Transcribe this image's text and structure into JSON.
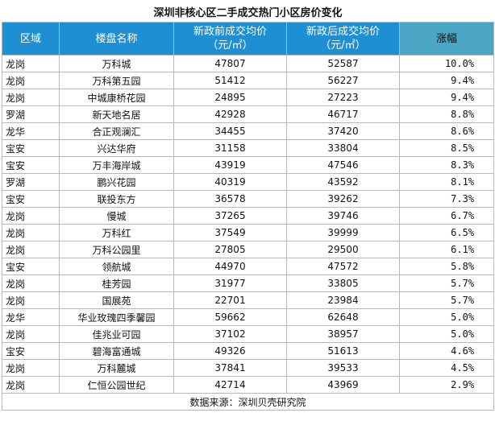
{
  "title": "深圳非核心区二手成交热门小区房价变化",
  "table": {
    "header": [
      [
        "区域"
      ],
      [
        "楼盘名称"
      ],
      [
        "新政前成交均价",
        "（元/㎡）"
      ],
      [
        "新政后成交均价",
        "（元/㎡）"
      ],
      [
        "涨幅"
      ]
    ],
    "rows": [
      [
        "龙岗",
        "万科城",
        "47807",
        "52587",
        "10.0%"
      ],
      [
        "龙岗",
        "万科第五园",
        "51412",
        "56227",
        "9.4%"
      ],
      [
        "龙岗",
        "中城康桥花园",
        "24895",
        "27223",
        "9.4%"
      ],
      [
        "罗湖",
        "新天地名居",
        "42928",
        "46717",
        "8.8%"
      ],
      [
        "龙华",
        "合正观澜汇",
        "34455",
        "37420",
        "8.6%"
      ],
      [
        "宝安",
        "兴达华府",
        "31158",
        "33804",
        "8.5%"
      ],
      [
        "宝安",
        "万丰海岸城",
        "43919",
        "47546",
        "8.3%"
      ],
      [
        "罗湖",
        "鹏兴花园",
        "40319",
        "43592",
        "8.1%"
      ],
      [
        "宝安",
        "联投东方",
        "36578",
        "39262",
        "7.3%"
      ],
      [
        "龙岗",
        "慢城",
        "37265",
        "39746",
        "6.7%"
      ],
      [
        "龙岗",
        "万科红",
        "37549",
        "39999",
        "6.5%"
      ],
      [
        "龙岗",
        "万科公园里",
        "27805",
        "29500",
        "6.1%"
      ],
      [
        "宝安",
        "领航城",
        "44970",
        "47572",
        "5.8%"
      ],
      [
        "龙岗",
        "桂芳园",
        "31977",
        "33805",
        "5.7%"
      ],
      [
        "龙岗",
        "国展苑",
        "22701",
        "23984",
        "5.7%"
      ],
      [
        "龙华",
        "华业玫瑰四季馨园",
        "59662",
        "62648",
        "5.0%"
      ],
      [
        "龙岗",
        "佳兆业可园",
        "37102",
        "38957",
        "5.0%"
      ],
      [
        "宝安",
        "碧海富通城",
        "49326",
        "51613",
        "4.6%"
      ],
      [
        "龙岗",
        "万科麓城",
        "37841",
        "39533",
        "4.5%"
      ],
      [
        "龙岗",
        "仁恒公园世纪",
        "42714",
        "43969",
        "2.9%"
      ]
    ]
  },
  "source": "数据来源：深圳贝壳研究院"
}
